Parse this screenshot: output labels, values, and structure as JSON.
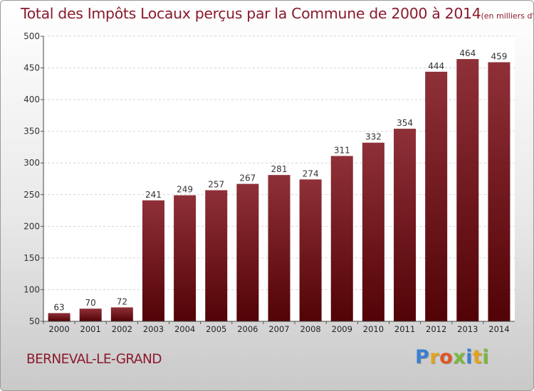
{
  "page": {
    "title": "Total des Impôts Locaux perçus par la Commune de 2000 à 2014",
    "unit": "(en milliers d'€)",
    "commune": "BERNEVAL-LE-GRAND",
    "brand": {
      "name": "Proxiti",
      "letters": [
        {
          "ch": "P",
          "color": "#3a7fd0"
        },
        {
          "ch": "r",
          "color": "#e6a21a"
        },
        {
          "ch": "o",
          "color": "#e25526"
        },
        {
          "ch": "x",
          "color": "#7bb83a"
        },
        {
          "ch": "i",
          "color": "#3a7fd0"
        },
        {
          "ch": "t",
          "color": "#e6a21a"
        },
        {
          "ch": "i",
          "color": "#7bb83a"
        }
      ]
    },
    "colors": {
      "title": "#8a1a2c",
      "bar_top": "#8f3038",
      "bar_bottom": "#520306"
    }
  },
  "chart_data": {
    "type": "bar",
    "title": "Total des Impôts Locaux perçus par la Commune de 2000 à 2014",
    "ylabel": "(en milliers d'€)",
    "categories": [
      "2000",
      "2001",
      "2002",
      "2003",
      "2004",
      "2005",
      "2006",
      "2007",
      "2008",
      "2009",
      "2010",
      "2011",
      "2012",
      "2013",
      "2014"
    ],
    "values": [
      63,
      70,
      72,
      241,
      249,
      257,
      267,
      281,
      274,
      311,
      332,
      354,
      444,
      464,
      459
    ],
    "ylim": [
      50,
      500
    ],
    "yticks": [
      50,
      100,
      150,
      200,
      250,
      300,
      350,
      400,
      450,
      500
    ],
    "grid": true,
    "legend": "none"
  }
}
